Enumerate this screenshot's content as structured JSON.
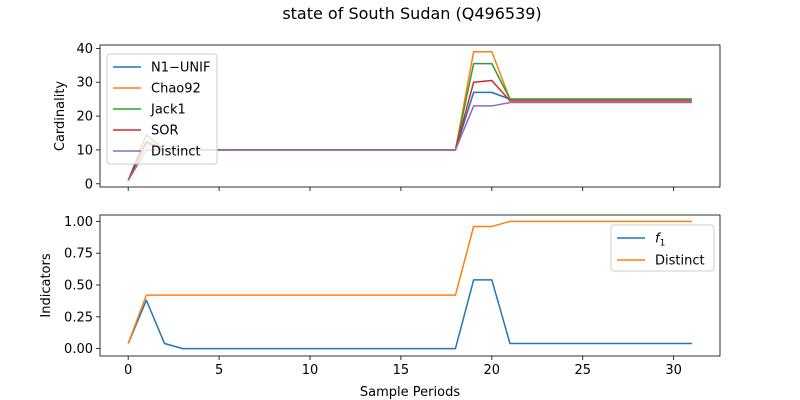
{
  "figure_title": "state of South Sudan (Q496539)",
  "colors": {
    "blue": "#1f77b4",
    "orange": "#ff7f0e",
    "green": "#2ca02c",
    "red": "#d62728",
    "purple": "#9467bd"
  },
  "chart_data": [
    {
      "type": "line",
      "title": "",
      "xlabel": "",
      "ylabel": "Cardinality",
      "xlim": [
        -1.55,
        32.55
      ],
      "ylim": [
        -0.95,
        41.0
      ],
      "xticks": [
        0,
        5,
        10,
        15,
        20,
        25,
        30
      ],
      "xtick_labels_visible": false,
      "yticks": [
        0,
        10,
        20,
        30,
        40
      ],
      "ytick_labels": [
        "0",
        "10",
        "20",
        "30",
        "40"
      ],
      "legend_position": "upper-left",
      "x": [
        0,
        1,
        2,
        3,
        4,
        5,
        6,
        7,
        8,
        9,
        10,
        11,
        12,
        13,
        14,
        15,
        16,
        17,
        18,
        19,
        20,
        21,
        22,
        23,
        24,
        25,
        26,
        27,
        28,
        29,
        30,
        31
      ],
      "series": [
        {
          "name": "N1−UNIF",
          "color_key": "blue",
          "values": [
            1,
            12,
            10,
            10,
            10,
            10,
            10,
            10,
            10,
            10,
            10,
            10,
            10,
            10,
            10,
            10,
            10,
            10,
            10,
            27,
            27,
            25,
            25,
            25,
            25,
            25,
            25,
            25,
            25,
            25,
            25,
            25
          ]
        },
        {
          "name": "Chao92",
          "color_key": "orange",
          "values": [
            1,
            12,
            10,
            10,
            10,
            10,
            10,
            10,
            10,
            10,
            10,
            10,
            10,
            10,
            10,
            10,
            10,
            10,
            10,
            39,
            39,
            25,
            25,
            25,
            25,
            25,
            25,
            25,
            25,
            25,
            25,
            25
          ]
        },
        {
          "name": "Jack1",
          "color_key": "green",
          "values": [
            1,
            14.5,
            10,
            10,
            10,
            10,
            10,
            10,
            10,
            10,
            10,
            10,
            10,
            10,
            10,
            10,
            10,
            10,
            10,
            35.5,
            35.5,
            25,
            25,
            25,
            25,
            25,
            25,
            25,
            25,
            25,
            25,
            25
          ]
        },
        {
          "name": "SOR",
          "color_key": "red",
          "values": [
            1,
            12.5,
            10,
            10,
            10,
            10,
            10,
            10,
            10,
            10,
            10,
            10,
            10,
            10,
            10,
            10,
            10,
            10,
            10,
            30,
            30.5,
            24.5,
            24.5,
            24.5,
            24.5,
            24.5,
            24.5,
            24.5,
            24.5,
            24.5,
            24.5,
            24.5
          ]
        },
        {
          "name": "Distinct",
          "color_key": "purple",
          "values": [
            1,
            10,
            10,
            10,
            10,
            10,
            10,
            10,
            10,
            10,
            10,
            10,
            10,
            10,
            10,
            10,
            10,
            10,
            10,
            23,
            23,
            24,
            24,
            24,
            24,
            24,
            24,
            24,
            24,
            24,
            24,
            24
          ]
        }
      ]
    },
    {
      "type": "line",
      "title": "",
      "xlabel": "Sample Periods",
      "ylabel": "Indicators",
      "xlim": [
        -1.55,
        32.55
      ],
      "ylim": [
        -0.058,
        1.05
      ],
      "xticks": [
        0,
        5,
        10,
        15,
        20,
        25,
        30
      ],
      "xtick_labels": [
        "0",
        "5",
        "10",
        "15",
        "20",
        "25",
        "30"
      ],
      "yticks": [
        0.0,
        0.25,
        0.5,
        0.75,
        1.0
      ],
      "ytick_labels": [
        "0.00",
        "0.25",
        "0.50",
        "0.75",
        "1.00"
      ],
      "legend_position": "upper-right",
      "x": [
        0,
        1,
        2,
        3,
        4,
        5,
        6,
        7,
        8,
        9,
        10,
        11,
        12,
        13,
        14,
        15,
        16,
        17,
        18,
        19,
        20,
        21,
        22,
        23,
        24,
        25,
        26,
        27,
        28,
        29,
        30,
        31
      ],
      "series": [
        {
          "name_main": "f",
          "name_sub": "1",
          "color_key": "blue",
          "values": [
            0.04,
            0.38,
            0.04,
            0,
            0,
            0,
            0,
            0,
            0,
            0,
            0,
            0,
            0,
            0,
            0,
            0,
            0,
            0,
            0,
            0.54,
            0.54,
            0.04,
            0.04,
            0.04,
            0.04,
            0.04,
            0.04,
            0.04,
            0.04,
            0.04,
            0.04,
            0.04
          ]
        },
        {
          "name": "Distinct",
          "color_key": "orange",
          "values": [
            0.04,
            0.42,
            0.42,
            0.42,
            0.42,
            0.42,
            0.42,
            0.42,
            0.42,
            0.42,
            0.42,
            0.42,
            0.42,
            0.42,
            0.42,
            0.42,
            0.42,
            0.42,
            0.42,
            0.96,
            0.96,
            1,
            1,
            1,
            1,
            1,
            1,
            1,
            1,
            1,
            1,
            1
          ]
        }
      ]
    }
  ]
}
